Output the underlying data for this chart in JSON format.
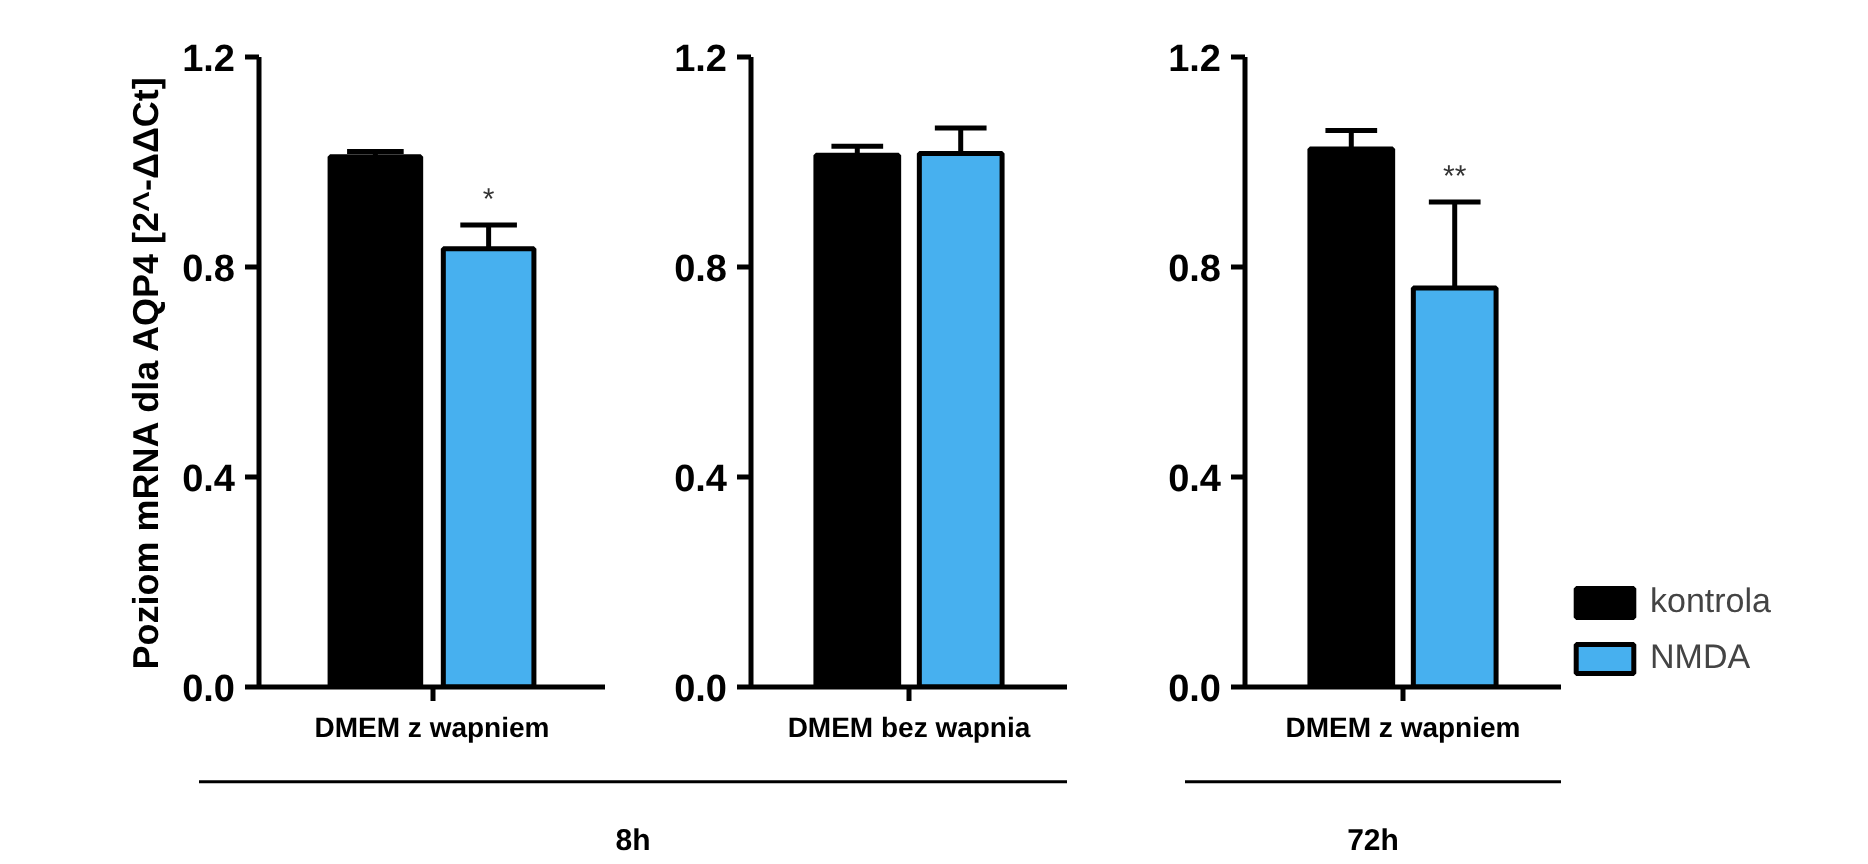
{
  "chart_data": [
    {
      "type": "bar",
      "categories": [
        "DMEM z wapniem"
      ],
      "ylabel": "Poziom mRNA dla AQP4 [2^-ΔΔCt]",
      "ylim": [
        0,
        1.2
      ],
      "yticks": [
        {
          "value": 0,
          "label": "0.0"
        },
        {
          "value": 0.4,
          "label": "0.4"
        },
        {
          "value": 0.8,
          "label": "0.8"
        },
        {
          "value": 1.2,
          "label": "1.2"
        }
      ],
      "grid": false,
      "series": [
        {
          "color": "#000000",
          "values": [
            1.01
          ],
          "errors": [
            [
              1.01,
              1.02
            ]
          ]
        },
        {
          "color": "#47b0ef",
          "values": [
            0.835
          ],
          "errors": [
            [
              0.835,
              0.88
            ]
          ]
        }
      ],
      "annotations": [
        "*"
      ],
      "xlabel": "8h"
    },
    {
      "type": "bar",
      "categories": [
        "DMEM bez wapnia"
      ],
      "ylim": [
        0,
        1.2
      ],
      "yticks": [
        {
          "value": 0,
          "label": "0.0"
        },
        {
          "value": 0.4,
          "label": "0.4"
        },
        {
          "value": 0.8,
          "label": "0.8"
        },
        {
          "value": 1.2,
          "label": "1.2"
        }
      ],
      "grid": false,
      "series": [
        {
          "color": "#000000",
          "values": [
            1.013
          ],
          "errors": [
            [
              1.013,
              1.03
            ]
          ]
        },
        {
          "color": "#47b0ef",
          "values": [
            1.016
          ],
          "errors": [
            [
              1.016,
              1.065
            ]
          ]
        }
      ]
    },
    {
      "type": "bar",
      "categories": [
        "DMEM z wapniem"
      ],
      "ylim": [
        0,
        1.2
      ],
      "yticks": [
        {
          "value": 0,
          "label": "0.0"
        },
        {
          "value": 0.4,
          "label": "0.4"
        },
        {
          "value": 0.8,
          "label": "0.8"
        },
        {
          "value": 1.2,
          "label": "1.2"
        }
      ],
      "grid": false,
      "legend": "right",
      "series": [
        {
          "name": "kontrola",
          "color": "#000000",
          "values": [
            1.025
          ],
          "errors": [
            [
              1.025,
              1.06
            ]
          ]
        },
        {
          "name": "NMDA",
          "color": "#47b0ef",
          "values": [
            0.76
          ],
          "errors": [
            [
              0.76,
              0.924
            ]
          ]
        }
      ],
      "annotations": [
        "**"
      ],
      "xlabel": "72h"
    }
  ]
}
